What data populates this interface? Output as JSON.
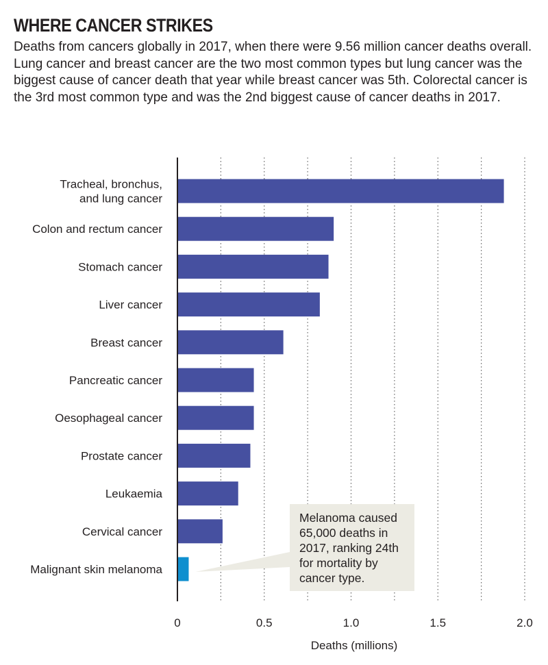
{
  "title": "WHERE CANCER STRIKES",
  "subtitle": "Deaths from cancers globally in 2017, when there were 9.56 million cancer deaths overall. Lung cancer and breast cancer are the two most common types but lung cancer was the biggest cause of cancer death that year while breast cancer was 5th. Colorectal cancer is the 3rd most common type and was the 2nd biggest cause of cancer deaths in 2017.",
  "colors": {
    "bar": "#4650a0",
    "highlight": "#0f8fcf",
    "axis": "#231f20",
    "grid": "#666666",
    "callout_bg": "#ecebe3"
  },
  "chart_data": {
    "type": "bar",
    "orientation": "horizontal",
    "categories": [
      [
        "Tracheal, bronchus,",
        "and lung cancer"
      ],
      [
        "Colon and rectum cancer"
      ],
      [
        "Stomach cancer"
      ],
      [
        "Liver cancer"
      ],
      [
        "Breast cancer"
      ],
      [
        "Pancreatic cancer"
      ],
      [
        "Oesophageal cancer"
      ],
      [
        "Prostate cancer"
      ],
      [
        "Leukaemia"
      ],
      [
        "Cervical cancer"
      ],
      [
        "Malignant skin melanoma"
      ]
    ],
    "values": [
      1.88,
      0.9,
      0.87,
      0.82,
      0.61,
      0.44,
      0.44,
      0.42,
      0.35,
      0.26,
      0.065
    ],
    "highlight_index": 10,
    "xlabel": "Deaths (millions)",
    "xlim": [
      0,
      2.0
    ],
    "xticks": [
      0,
      0.5,
      1.0,
      1.5,
      2.0
    ],
    "xtick_labels": [
      "0",
      "0.5",
      "1.0",
      "1.5",
      "2.0"
    ],
    "grid_step": 0.25,
    "grid": true,
    "annotation": {
      "target_index": 10,
      "lines": [
        "Melanoma caused",
        "65,000 deaths in",
        "2017, ranking 24th",
        "for mortality by",
        "cancer type."
      ]
    }
  }
}
